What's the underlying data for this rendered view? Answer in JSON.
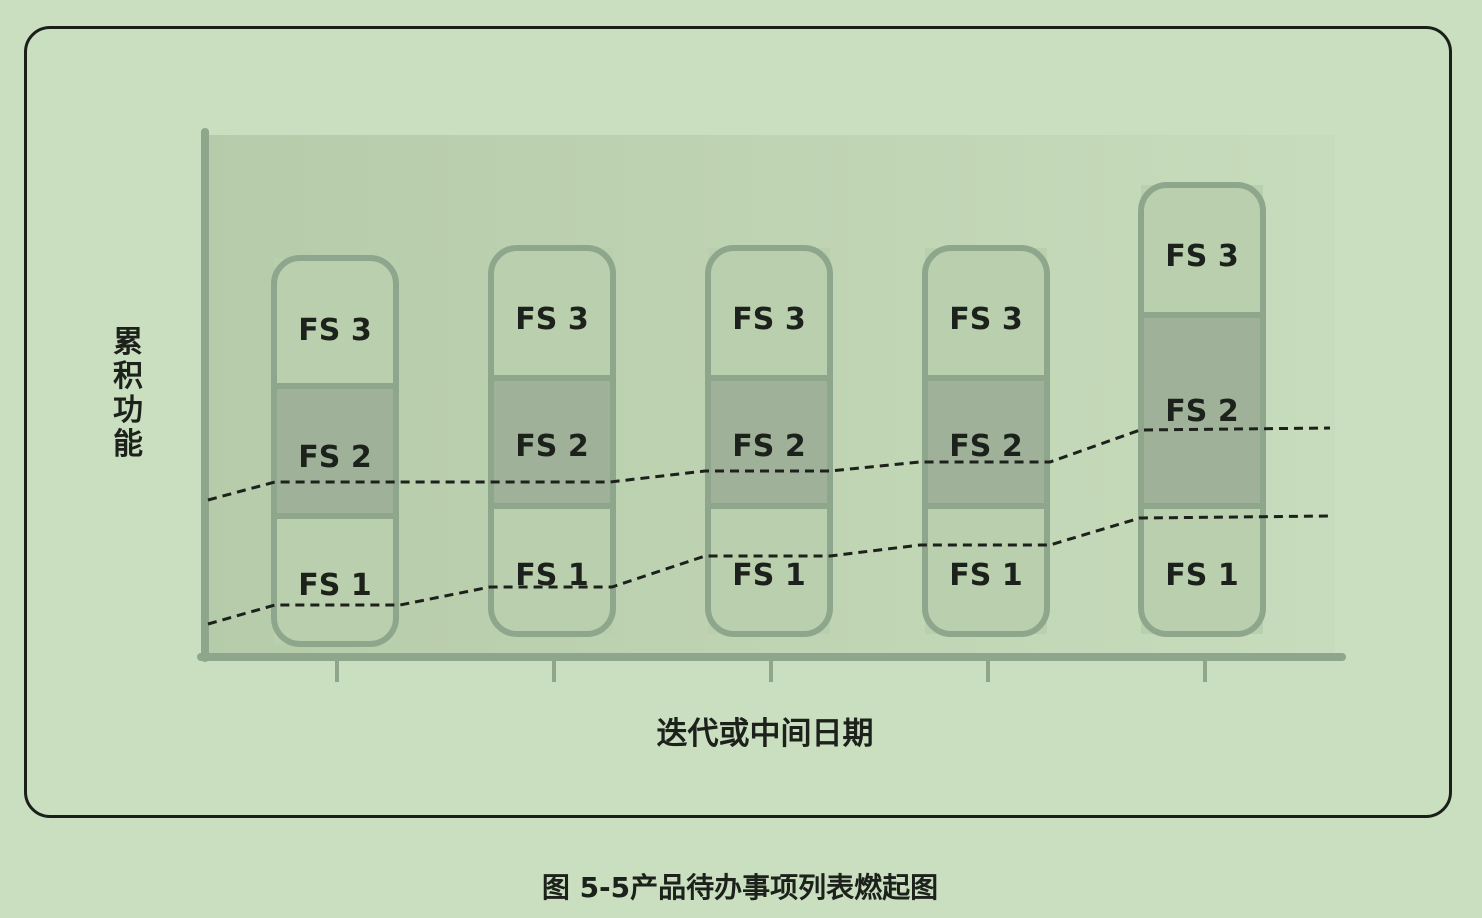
{
  "y_axis_label": "累积功能",
  "x_axis_label": "迭代或中间日期",
  "caption": "图 5-5产品待办事项列表燃起图",
  "segment_labels": [
    "FS 1",
    "FS 2",
    "FS 3"
  ],
  "colors": {
    "background": "#cadfbf",
    "frame_border": "#1b1f1a",
    "column_border": "#8ea68b",
    "segment_fill_light": "#b9cfae",
    "segment_fill_dark": "#9fb299",
    "axis": "#8ea68b",
    "dashed_line": "#1d211c"
  }
}
